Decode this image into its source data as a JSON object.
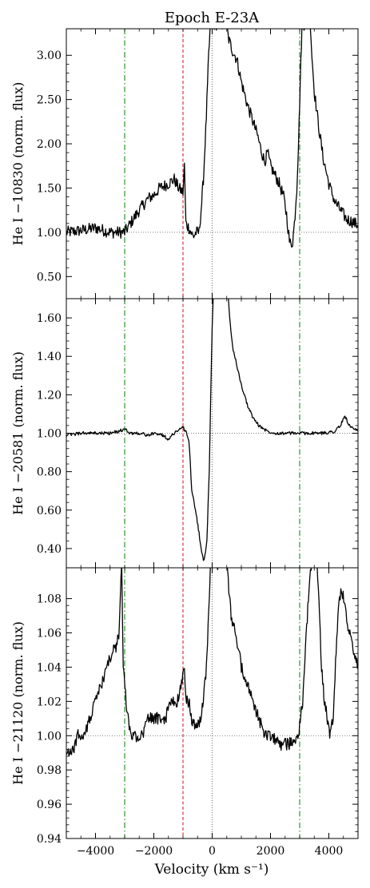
{
  "figure": {
    "title": "Epoch E-23A",
    "xlabel": "Velocity (km s⁻¹)"
  },
  "chart_data": [
    {
      "type": "line",
      "ylabel": "He I −10830 (norm. flux)",
      "xlim": [
        -5000,
        5000
      ],
      "ylim": [
        0.25,
        3.3
      ],
      "yticks": [
        0.5,
        1.0,
        1.5,
        2.0,
        2.5,
        3.0
      ],
      "ytick_labels": [
        "0.50",
        "1.00",
        "1.50",
        "2.00",
        "2.50",
        "3.00"
      ],
      "xticks": [
        -4000,
        -2000,
        0,
        2000,
        4000
      ],
      "continuum": 1.0,
      "vlines": [
        {
          "x": -3000,
          "color": "#1a8a1a",
          "style": "dashdot"
        },
        {
          "x": -1000,
          "color": "#d62728",
          "style": "dashed"
        },
        {
          "x": 0,
          "color": "#777777",
          "style": "dotted"
        },
        {
          "x": 3000,
          "color": "#1a8a1a",
          "style": "dashdot"
        }
      ],
      "series": [
        {
          "values": [
            [
              -5000,
              1.0
            ],
            [
              -4500,
              1.02
            ],
            [
              -4000,
              1.05
            ],
            [
              -3500,
              1.0
            ],
            [
              -3000,
              1.0
            ],
            [
              -2800,
              1.1
            ],
            [
              -2500,
              1.25
            ],
            [
              -2200,
              1.38
            ],
            [
              -2000,
              1.42
            ],
            [
              -1800,
              1.5
            ],
            [
              -1500,
              1.55
            ],
            [
              -1300,
              1.6
            ],
            [
              -1150,
              1.5
            ],
            [
              -1000,
              1.45
            ],
            [
              -950,
              1.75
            ],
            [
              -900,
              1.1
            ],
            [
              -800,
              1.05
            ],
            [
              -650,
              0.95
            ],
            [
              -550,
              1.0
            ],
            [
              -450,
              1.0
            ],
            [
              -380,
              1.25
            ],
            [
              -300,
              1.6
            ],
            [
              -200,
              2.3
            ],
            [
              -120,
              3.0
            ],
            [
              -60,
              3.35
            ],
            [
              500,
              3.35
            ],
            [
              550,
              3.2
            ],
            [
              700,
              3.05
            ],
            [
              850,
              2.95
            ],
            [
              1000,
              2.7
            ],
            [
              1200,
              2.45
            ],
            [
              1400,
              2.25
            ],
            [
              1550,
              2.1
            ],
            [
              1700,
              1.9
            ],
            [
              1800,
              1.8
            ],
            [
              1900,
              1.9
            ],
            [
              2000,
              1.75
            ],
            [
              2150,
              1.65
            ],
            [
              2300,
              1.55
            ],
            [
              2450,
              1.4
            ],
            [
              2550,
              1.2
            ],
            [
              2600,
              1.05
            ],
            [
              2650,
              0.9
            ],
            [
              2700,
              0.85
            ],
            [
              2760,
              0.9
            ],
            [
              2820,
              1.1
            ],
            [
              2900,
              1.5
            ],
            [
              2960,
              2.0
            ],
            [
              3020,
              2.7
            ],
            [
              3080,
              3.35
            ],
            [
              3370,
              3.35
            ],
            [
              3420,
              3.0
            ],
            [
              3500,
              2.6
            ],
            [
              3650,
              2.2
            ],
            [
              3800,
              1.85
            ],
            [
              4000,
              1.55
            ],
            [
              4200,
              1.35
            ],
            [
              4400,
              1.25
            ],
            [
              4600,
              1.15
            ],
            [
              4800,
              1.12
            ],
            [
              5000,
              1.08
            ]
          ]
        }
      ]
    },
    {
      "type": "line",
      "ylabel": "He I −20581 (norm. flux)",
      "xlim": [
        -5000,
        5000
      ],
      "ylim": [
        0.3,
        1.7
      ],
      "yticks": [
        0.4,
        0.6,
        0.8,
        1.0,
        1.2,
        1.4,
        1.6
      ],
      "ytick_labels": [
        "0.40",
        "0.60",
        "0.80",
        "1.00",
        "1.20",
        "1.40",
        "1.60"
      ],
      "xticks": [
        -4000,
        -2000,
        0,
        2000,
        4000
      ],
      "continuum": 1.0,
      "vlines": [
        {
          "x": -3000,
          "color": "#1a8a1a",
          "style": "dashdot"
        },
        {
          "x": -1000,
          "color": "#d62728",
          "style": "dashed"
        },
        {
          "x": 0,
          "color": "#777777",
          "style": "dotted"
        },
        {
          "x": 3000,
          "color": "#1a8a1a",
          "style": "dashdot"
        }
      ],
      "series": [
        {
          "values": [
            [
              -5000,
              0.99
            ],
            [
              -4500,
              1.0
            ],
            [
              -4000,
              1.0
            ],
            [
              -3500,
              1.0
            ],
            [
              -3200,
              1.01
            ],
            [
              -3000,
              1.02
            ],
            [
              -2800,
              1.0
            ],
            [
              -2500,
              1.0
            ],
            [
              -2200,
              0.99
            ],
            [
              -1900,
              1.0
            ],
            [
              -1700,
              0.99
            ],
            [
              -1500,
              0.97
            ],
            [
              -1300,
              1.0
            ],
            [
              -1150,
              1.02
            ],
            [
              -1000,
              1.03
            ],
            [
              -900,
              1.01
            ],
            [
              -800,
              0.96
            ],
            [
              -750,
              0.85
            ],
            [
              -700,
              0.7
            ],
            [
              -620,
              0.64
            ],
            [
              -550,
              0.58
            ],
            [
              -450,
              0.48
            ],
            [
              -380,
              0.4
            ],
            [
              -300,
              0.34
            ],
            [
              -250,
              0.36
            ],
            [
              -180,
              0.45
            ],
            [
              -100,
              0.8
            ],
            [
              -50,
              1.2
            ],
            [
              0,
              1.55
            ],
            [
              40,
              1.72
            ],
            [
              550,
              1.72
            ],
            [
              600,
              1.6
            ],
            [
              700,
              1.45
            ],
            [
              850,
              1.35
            ],
            [
              1000,
              1.25
            ],
            [
              1200,
              1.15
            ],
            [
              1400,
              1.08
            ],
            [
              1600,
              1.04
            ],
            [
              1900,
              1.01
            ],
            [
              2200,
              1.0
            ],
            [
              2600,
              1.0
            ],
            [
              3000,
              1.0
            ],
            [
              3400,
              1.0
            ],
            [
              3800,
              1.0
            ],
            [
              4200,
              1.01
            ],
            [
              4400,
              1.04
            ],
            [
              4550,
              1.09
            ],
            [
              4700,
              1.04
            ],
            [
              4850,
              1.02
            ],
            [
              5000,
              1.01
            ]
          ]
        }
      ]
    },
    {
      "type": "line",
      "ylabel": "He I −21120 (norm. flux)",
      "xlim": [
        -5000,
        5000
      ],
      "ylim": [
        0.94,
        1.098
      ],
      "yticks": [
        0.94,
        0.96,
        0.98,
        1.0,
        1.02,
        1.04,
        1.06,
        1.08
      ],
      "ytick_labels": [
        "0.94",
        "0.96",
        "0.98",
        "1.00",
        "1.02",
        "1.04",
        "1.06",
        "1.08"
      ],
      "xticks": [
        -4000,
        -2000,
        0,
        2000,
        4000
      ],
      "xtick_labels": [
        "−4000",
        "−2000",
        "0",
        "2000",
        "4000"
      ],
      "continuum": 1.0,
      "vlines": [
        {
          "x": -3000,
          "color": "#1a8a1a",
          "style": "dashdot"
        },
        {
          "x": -1000,
          "color": "#d62728",
          "style": "dashed"
        },
        {
          "x": 0,
          "color": "#777777",
          "style": "dotted"
        },
        {
          "x": 3000,
          "color": "#1a8a1a",
          "style": "dashdot"
        }
      ],
      "series": [
        {
          "values": [
            [
              -5000,
              0.99
            ],
            [
              -4800,
              0.99
            ],
            [
              -4600,
              1.0
            ],
            [
              -4400,
              1.0
            ],
            [
              -4200,
              1.01
            ],
            [
              -4000,
              1.02
            ],
            [
              -3800,
              1.03
            ],
            [
              -3600,
              1.04
            ],
            [
              -3400,
              1.05
            ],
            [
              -3300,
              1.05
            ],
            [
              -3200,
              1.06
            ],
            [
              -3150,
              1.08
            ],
            [
              -3100,
              1.1
            ],
            [
              -3050,
              1.04
            ],
            [
              -2950,
              1.02
            ],
            [
              -2800,
              1.0
            ],
            [
              -2600,
              1.0
            ],
            [
              -2400,
              1.0
            ],
            [
              -2200,
              1.01
            ],
            [
              -2000,
              1.01
            ],
            [
              -1800,
              1.01
            ],
            [
              -1600,
              1.01
            ],
            [
              -1400,
              1.02
            ],
            [
              -1200,
              1.02
            ],
            [
              -1050,
              1.03
            ],
            [
              -950,
              1.04
            ],
            [
              -900,
              1.02
            ],
            [
              -800,
              1.02
            ],
            [
              -700,
              1.01
            ],
            [
              -600,
              1.005
            ],
            [
              -500,
              1.005
            ],
            [
              -400,
              1.01
            ],
            [
              -300,
              1.02
            ],
            [
              -200,
              1.04
            ],
            [
              -120,
              1.07
            ],
            [
              -60,
              1.1
            ],
            [
              500,
              1.1
            ],
            [
              550,
              1.09
            ],
            [
              650,
              1.07
            ],
            [
              800,
              1.06
            ],
            [
              1000,
              1.04
            ],
            [
              1200,
              1.03
            ],
            [
              1400,
              1.02
            ],
            [
              1600,
              1.01
            ],
            [
              1800,
              1.0
            ],
            [
              2000,
              1.0
            ],
            [
              2300,
              0.995
            ],
            [
              2600,
              0.995
            ],
            [
              2900,
              0.998
            ],
            [
              3000,
              1.005
            ],
            [
              3100,
              1.02
            ],
            [
              3200,
              1.05
            ],
            [
              3300,
              1.08
            ],
            [
              3370,
              1.1
            ],
            [
              3600,
              1.1
            ],
            [
              3680,
              1.07
            ],
            [
              3750,
              1.04
            ],
            [
              3850,
              1.02
            ],
            [
              3950,
              1.01
            ],
            [
              4050,
              1.0
            ],
            [
              4150,
              1.01
            ],
            [
              4250,
              1.05
            ],
            [
              4350,
              1.08
            ],
            [
              4450,
              1.085
            ],
            [
              4550,
              1.075
            ],
            [
              4700,
              1.06
            ],
            [
              4850,
              1.05
            ],
            [
              5000,
              1.04
            ]
          ]
        }
      ]
    }
  ]
}
